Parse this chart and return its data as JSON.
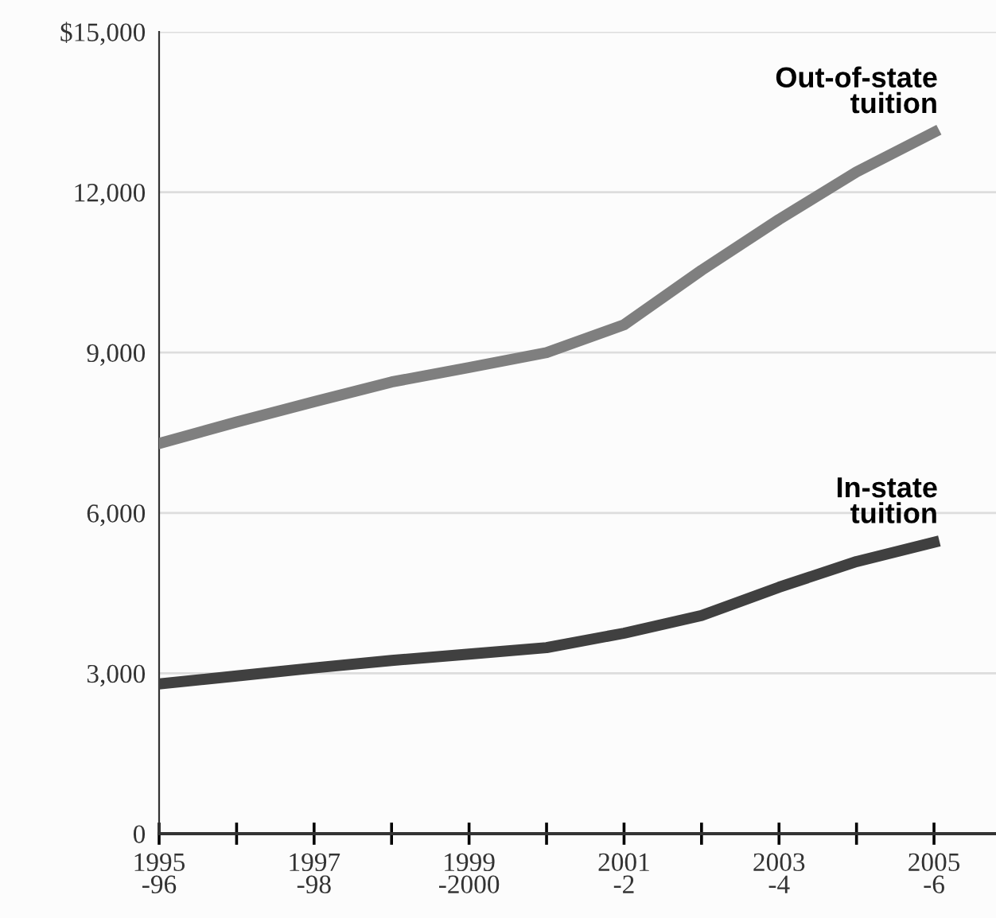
{
  "chart_data": {
    "type": "line",
    "categories": [
      "1995\n-96",
      null,
      "1997\n-98",
      null,
      "1999\n-2000",
      null,
      "2001\n-2",
      null,
      "2003\n-4",
      null,
      "2005\n-6"
    ],
    "series": [
      {
        "name": "Out-of-state\ntuition",
        "color": "#7f7f7f",
        "values": [
          7300,
          7700,
          8080,
          8450,
          8720,
          9000,
          9520,
          10540,
          11490,
          12380,
          13120
        ]
      },
      {
        "name": "In-state\ntuition",
        "color": "#404040",
        "values": [
          2800,
          2950,
          3100,
          3240,
          3360,
          3480,
          3750,
          4080,
          4610,
          5090,
          5450
        ]
      }
    ],
    "ylim": [
      0,
      15000
    ],
    "yticks": [
      0,
      {
        "value": 3000,
        "label": "3,000"
      },
      {
        "value": 6000,
        "label": "6,000"
      },
      {
        "value": 9000,
        "label": "9,000"
      },
      {
        "value": 12000,
        "label": "12,000"
      },
      {
        "value": 15000,
        "label": "$15,000"
      }
    ],
    "grid": "y",
    "legend": false,
    "marker": "none",
    "line_style": "solid"
  }
}
